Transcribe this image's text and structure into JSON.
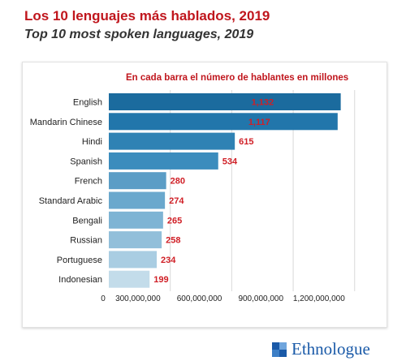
{
  "header": {
    "title_es": "Los 10 lenguajes más hablados,  2019",
    "title_en": "Top 10 most spoken languages, 2019"
  },
  "annotation": "En cada barra el número de hablantes en  millones",
  "brand": {
    "name": "Ethnologue",
    "mark_icon": "ethnologue-logo-icon",
    "color": "#1a5aa8"
  },
  "chart_data": {
    "type": "bar",
    "orientation": "horizontal",
    "categories": [
      "English",
      "Mandarin Chinese",
      "Hindi",
      "Spanish",
      "French",
      "Standard Arabic",
      "Bengali",
      "Russian",
      "Portuguese",
      "Indonesian"
    ],
    "values": [
      1132000000,
      1117000000,
      615000000,
      534000000,
      280000000,
      274000000,
      265000000,
      258000000,
      234000000,
      199000000
    ],
    "data_labels": [
      "1,132",
      "1,117",
      "615",
      "534",
      "280",
      "274",
      "265",
      "258",
      "234",
      "199"
    ],
    "colors": [
      "#1b6b9e",
      "#2276ab",
      "#2f82b4",
      "#3b8cbd",
      "#5b9dc6",
      "#6aa8cd",
      "#7eb4d4",
      "#92bfda",
      "#a9cde2",
      "#c3dcea"
    ],
    "value_label_color": "#d01f26",
    "xlim": [
      0,
      1300000000
    ],
    "x_ticks": [
      0,
      300000000,
      600000000,
      900000000,
      1200000000
    ],
    "x_tick_labels": [
      "0",
      "300,000,000",
      "600,000,000",
      "900,000,000",
      "1,200,000,000"
    ],
    "grid": true
  }
}
